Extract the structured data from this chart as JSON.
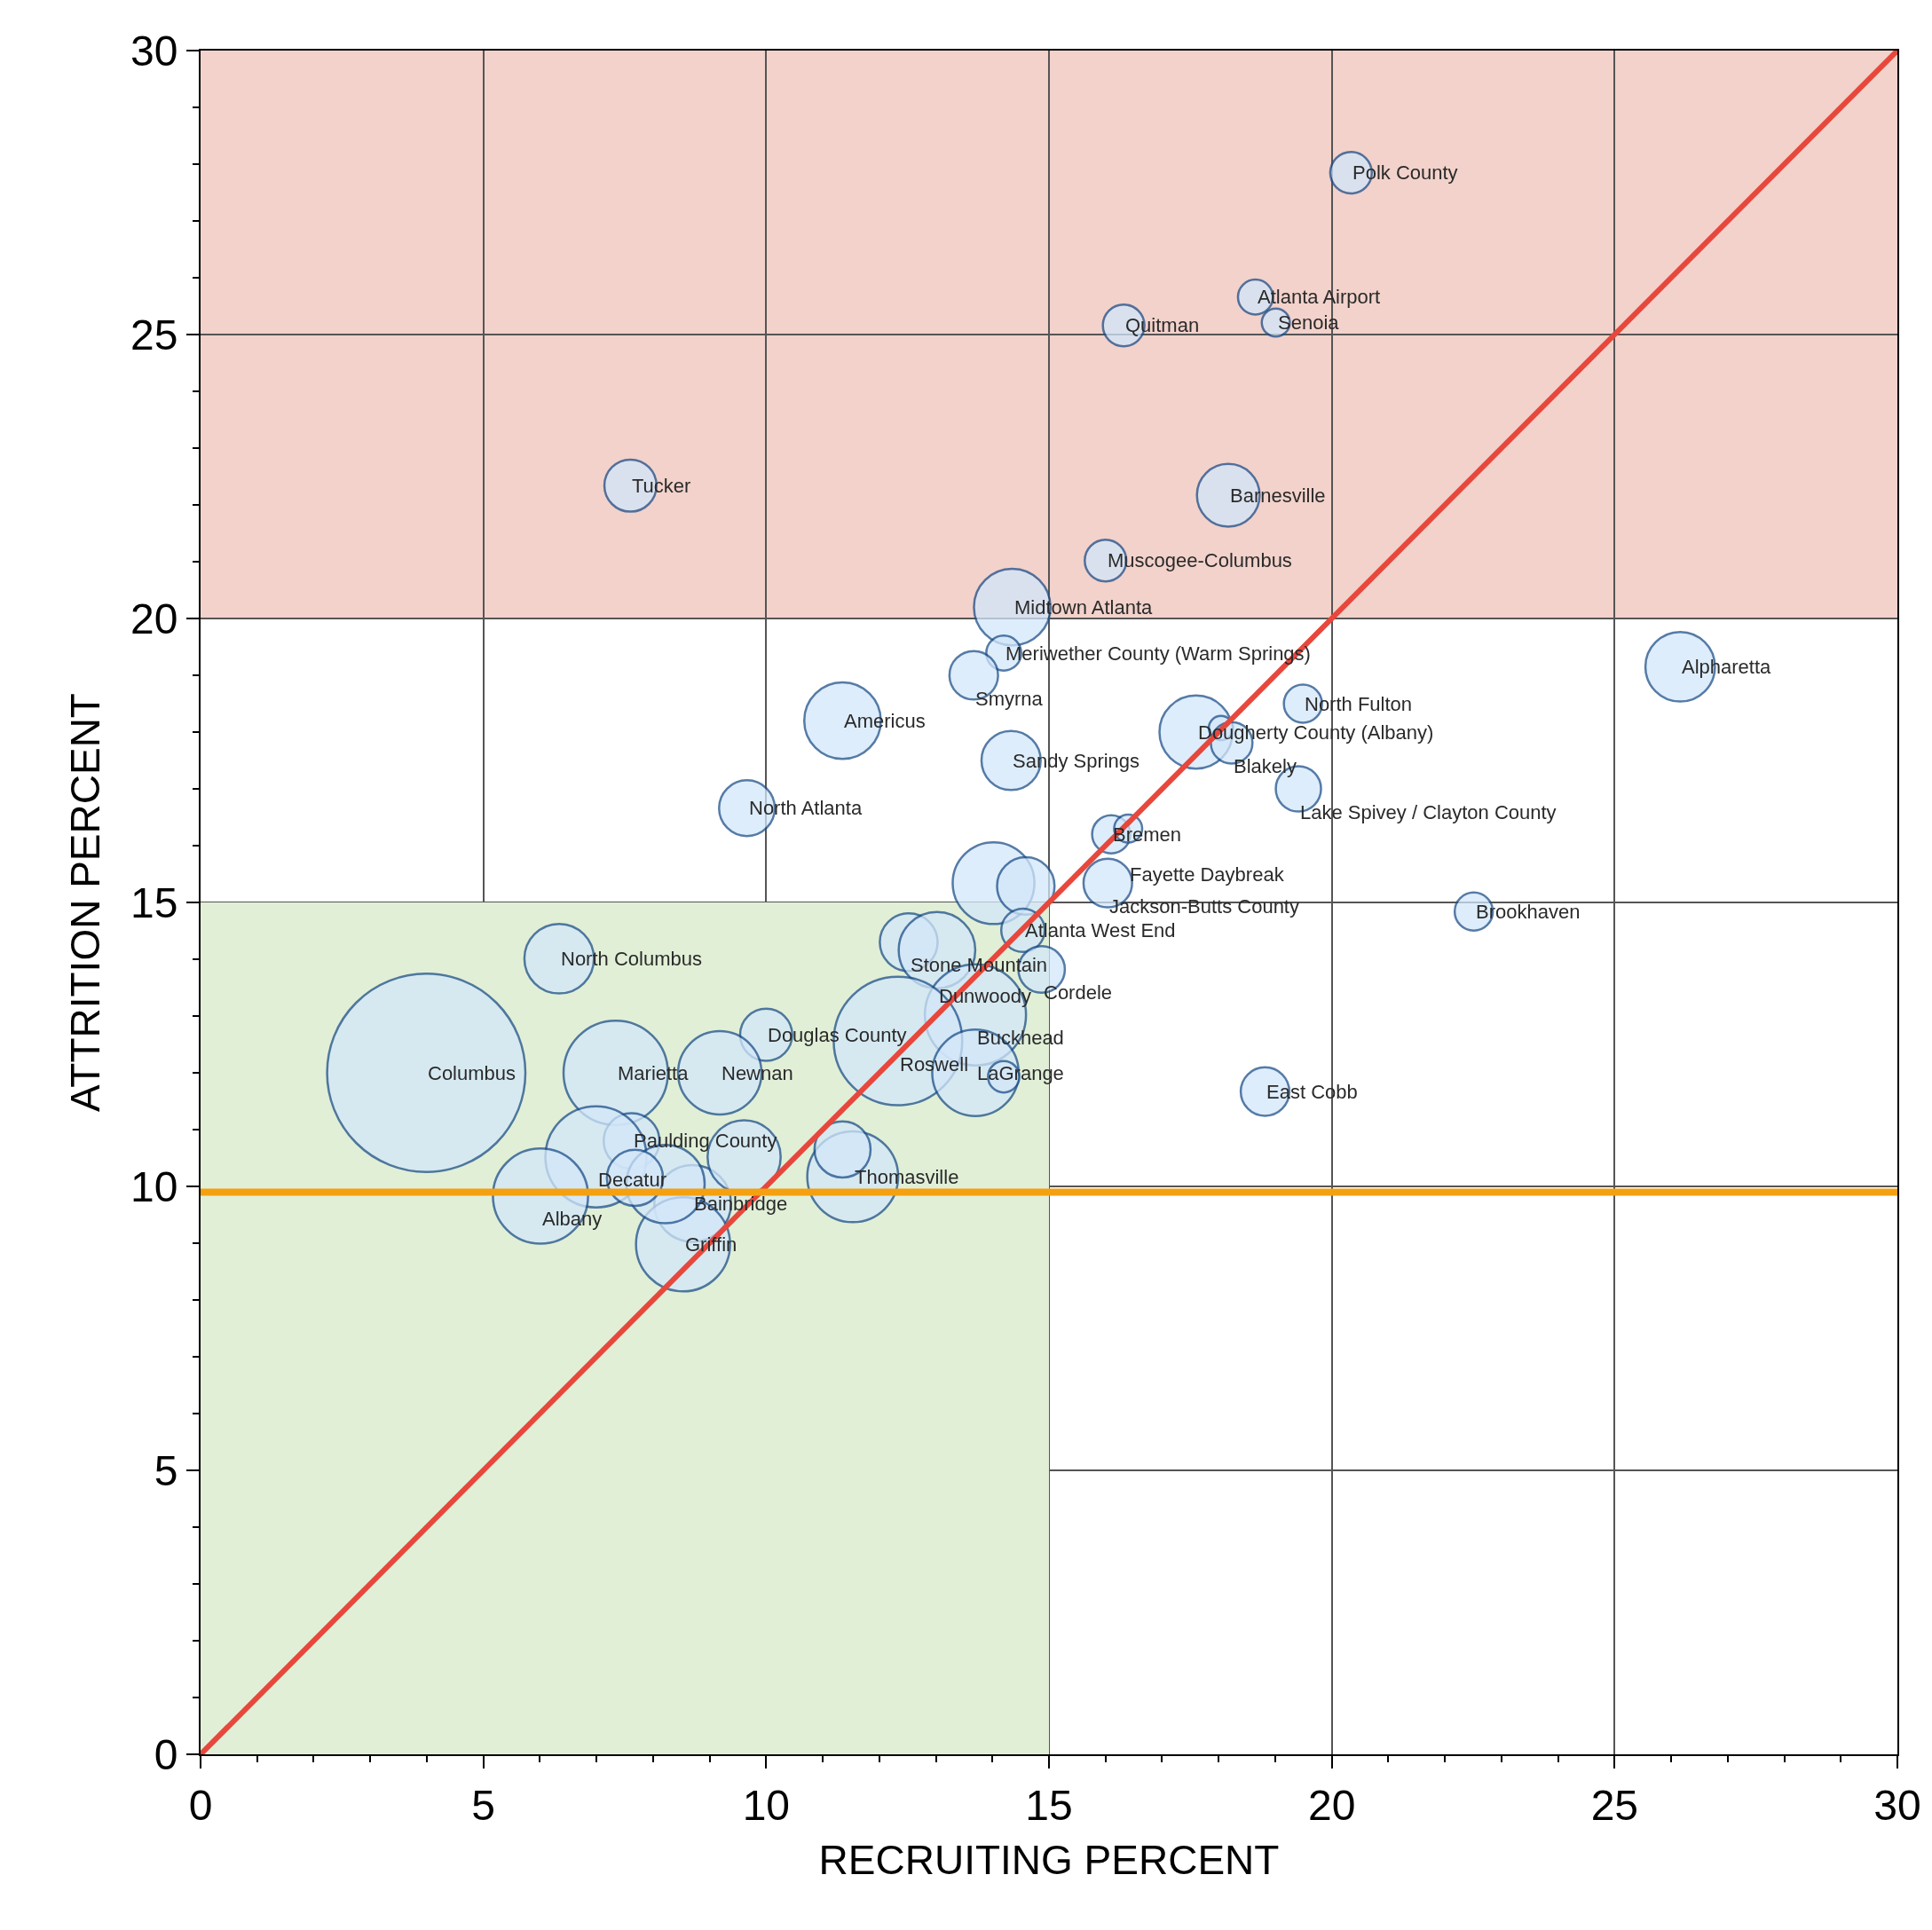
{
  "chart_data": {
    "type": "bubble",
    "xlabel": "RECRUITING PERCENT",
    "ylabel": "ATTRITION PERCENT",
    "xlim": [
      0,
      30
    ],
    "ylim": [
      0,
      30
    ],
    "xticks": [
      0,
      5,
      10,
      15,
      20,
      25,
      30
    ],
    "yticks": [
      0,
      5,
      10,
      15,
      20,
      25,
      30
    ],
    "grid": true,
    "series": [
      {
        "type": "area",
        "color": "#e1efd7",
        "x": [
          0,
          15
        ],
        "values": [
          15,
          15
        ]
      },
      {
        "color": "#d3e7fa",
        "x": [
          20.34,
          18.65,
          19.01,
          16.32,
          7.6,
          18.17,
          16.0,
          14.35,
          14.2,
          13.67,
          11.35,
          14.33,
          9.66,
          26.16,
          19.49,
          17.6,
          18.04,
          18.23,
          19.41,
          16.1,
          16.4,
          14.02,
          14.59,
          16.04,
          22.51,
          14.54,
          12.52,
          13.02,
          14.87,
          13.7,
          10.0,
          12.33,
          13.7,
          14.2,
          18.82,
          6.34,
          3.99,
          7.34,
          9.18,
          7.62,
          6.99,
          6.01,
          8.7,
          8.53,
          11.53,
          11.35,
          8.22,
          9.61,
          7.68
        ],
        "values": [
          27.85,
          25.66,
          25.21,
          25.16,
          22.34,
          22.17,
          21.02,
          20.2,
          19.39,
          19.0,
          18.2,
          17.5,
          16.66,
          19.15,
          18.5,
          18.0,
          18.07,
          17.81,
          17.0,
          16.2,
          16.3,
          15.34,
          15.29,
          15.34,
          14.84,
          14.51,
          14.3,
          14.16,
          13.82,
          13.02,
          12.67,
          12.56,
          12.0,
          11.93,
          11.67,
          14.01,
          12.0,
          12.0,
          12.0,
          10.8,
          10.52,
          9.83,
          9.7,
          8.98,
          10.17,
          10.65,
          10.04,
          10.52,
          10.15
        ],
        "sizes": [
          0.044,
          0.031,
          0.02,
          0.044,
          0.069,
          0.1,
          0.044,
          0.149,
          0.031,
          0.06,
          0.149,
          0.089,
          0.079,
          0.123,
          0.037,
          0.136,
          0.015,
          0.044,
          0.052,
          0.037,
          0.02,
          0.17,
          0.084,
          0.06,
          0.037,
          0.048,
          0.085,
          0.149,
          0.055,
          0.26,
          0.069,
          0.42,
          0.19,
          0.025,
          0.06,
          0.123,
          1,
          0.277,
          0.177,
          0.079,
          0.26,
          0.23,
          0.15,
          0.225,
          0.21,
          0.08,
          0.156,
          0.136,
          0.08
        ]
      },
      {
        "type": "line",
        "color": "#e8473c",
        "x": [
          0,
          30
        ],
        "values": [
          0,
          30
        ]
      }
    ],
    "ref_lines": [
      {
        "axis": "y",
        "value": 9.9,
        "color": "#f5a00f"
      }
    ],
    "bands": [
      {
        "axis": "y",
        "from": 20,
        "to": 30,
        "color": "#f2d2cb"
      }
    ],
    "annotations": [
      {
        "text": "Polk County",
        "x": 20.34,
        "y": 27.85
      },
      {
        "text": "Atlanta Airport",
        "x": 18.65,
        "y": 25.66
      },
      {
        "text": "Senoia",
        "x": 19.01,
        "y": 25.21
      },
      {
        "text": "Quitman",
        "x": 16.32,
        "y": 25.16
      },
      {
        "text": "Tucker",
        "x": 7.6,
        "y": 22.34
      },
      {
        "text": "Barnesville",
        "x": 18.17,
        "y": 22.17
      },
      {
        "text": "Muscogee-Columbus",
        "x": 16.0,
        "y": 21.02
      },
      {
        "text": "Midtown Atlanta",
        "x": 14.35,
        "y": 20.2
      },
      {
        "text": "Meriwether County (Warm Springs)",
        "x": 14.2,
        "y": 19.39
      },
      {
        "text": "Smyrna",
        "x": 13.67,
        "y": 19.0
      },
      {
        "text": "Americus",
        "x": 11.35,
        "y": 18.2
      },
      {
        "text": "Sandy Springs",
        "x": 14.33,
        "y": 17.5
      },
      {
        "text": "North Atlanta",
        "x": 9.66,
        "y": 16.66
      },
      {
        "text": "Alpharetta",
        "x": 26.16,
        "y": 19.15
      },
      {
        "text": "North Fulton",
        "x": 19.49,
        "y": 18.5
      },
      {
        "text": "Dougherty County (Albany)",
        "x": 17.6,
        "y": 18.0
      },
      {
        "text": "Blakely",
        "x": 18.23,
        "y": 17.81
      },
      {
        "text": "Lake Spivey / Clayton County",
        "x": 19.41,
        "y": 17.0
      },
      {
        "text": "Bremen",
        "x": 16.1,
        "y": 16.2
      },
      {
        "text": "Fayette Daybreak",
        "x": 16.4,
        "y": 16.3
      },
      {
        "text": "Jackson-Butts County",
        "x": 16.04,
        "y": 15.34
      },
      {
        "text": "Brookhaven",
        "x": 22.51,
        "y": 14.84
      },
      {
        "text": "Atlanta West End",
        "x": 14.54,
        "y": 14.51
      },
      {
        "text": "Stone Mountain",
        "x": 12.52,
        "y": 14.3
      },
      {
        "text": "Dunwoody",
        "x": 13.02,
        "y": 14.16
      },
      {
        "text": "Cordele",
        "x": 14.87,
        "y": 13.82
      },
      {
        "text": "Buckhead",
        "x": 13.7,
        "y": 13.02
      },
      {
        "text": "Douglas County",
        "x": 10.0,
        "y": 12.67
      },
      {
        "text": "Roswell",
        "x": 12.33,
        "y": 12.56
      },
      {
        "text": "LaGrange",
        "x": 13.7,
        "y": 12.0
      },
      {
        "text": "East Cobb",
        "x": 18.82,
        "y": 11.67
      },
      {
        "text": "North Columbus",
        "x": 6.34,
        "y": 14.01
      },
      {
        "text": "Columbus",
        "x": 3.99,
        "y": 12.0
      },
      {
        "text": "Marietta",
        "x": 7.34,
        "y": 12.0
      },
      {
        "text": "Newnan",
        "x": 9.18,
        "y": 12.0
      },
      {
        "text": "Paulding County",
        "x": 7.62,
        "y": 10.8
      },
      {
        "text": "Decatur",
        "x": 6.99,
        "y": 10.52
      },
      {
        "text": "Albany",
        "x": 6.01,
        "y": 9.83
      },
      {
        "text": "Bainbridge",
        "x": 8.7,
        "y": 9.7
      },
      {
        "text": "Griffin",
        "x": 8.53,
        "y": 8.98
      },
      {
        "text": "Thomasville",
        "x": 11.53,
        "y": 10.17
      }
    ]
  }
}
